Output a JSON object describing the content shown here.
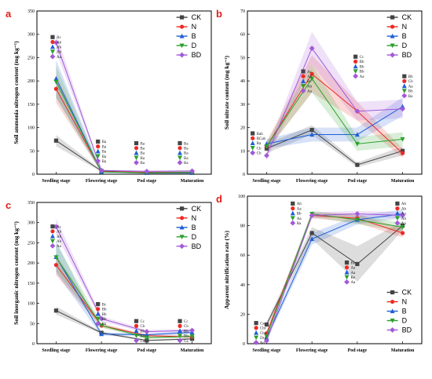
{
  "colors": {
    "CK": "#444444",
    "N": "#ee2a24",
    "B": "#1f5fd6",
    "D": "#2ca02c",
    "BD": "#a259d9"
  },
  "chart_data": [
    {
      "id": "a",
      "type": "line",
      "panel_label": "a",
      "ylabel": "Soil ammonia nitrogen content (mg kg⁻¹)",
      "ylim": [
        0,
        350
      ],
      "yticks": [
        0,
        50,
        100,
        150,
        200,
        250,
        300,
        350
      ],
      "categories": [
        "Seedling stage",
        "Flowering stage",
        "Pod stage",
        "Maturation"
      ],
      "series": [
        {
          "name": "CK",
          "values": [
            72,
            7,
            3,
            3
          ],
          "ci": [
            12,
            2,
            2,
            2
          ]
        },
        {
          "name": "N",
          "values": [
            183,
            6,
            4,
            4
          ],
          "ci": [
            30,
            2,
            2,
            2
          ]
        },
        {
          "name": "B",
          "values": [
            205,
            5,
            3,
            3
          ],
          "ci": [
            40,
            2,
            2,
            2
          ]
        },
        {
          "name": "D",
          "values": [
            198,
            5,
            3,
            4
          ],
          "ci": [
            35,
            2,
            2,
            2
          ]
        },
        {
          "name": "BD",
          "values": [
            282,
            8,
            6,
            7
          ],
          "ci": [
            20,
            2,
            2,
            2
          ]
        }
      ],
      "letters": [
        [
          "Ac",
          "Ab",
          "Ab",
          "Ab",
          "Aa"
        ],
        [
          "Ba",
          "Ba",
          "Ba",
          "Ba",
          "Ba"
        ],
        [
          "Ba",
          "Ba",
          "Ba",
          "Ba",
          "Ba"
        ],
        [
          "Ba",
          "Ba",
          "Ba",
          "Ba",
          "Ba"
        ]
      ]
    },
    {
      "id": "b",
      "type": "line",
      "panel_label": "b",
      "ylabel": "Soil nitrate content (mg kg⁻¹)",
      "ylim": [
        0,
        70
      ],
      "yticks": [
        0,
        10,
        20,
        30,
        40,
        50,
        60,
        70
      ],
      "categories": [
        "Seedling stage",
        "Flowering stage",
        "Pod stage",
        "Maturation"
      ],
      "series": [
        {
          "name": "CK",
          "values": [
            11,
            19,
            4,
            10
          ],
          "ci": [
            2,
            2,
            1,
            2
          ]
        },
        {
          "name": "N",
          "values": [
            12,
            43,
            27,
            9
          ],
          "ci": [
            2,
            8,
            4,
            2
          ]
        },
        {
          "name": "B",
          "values": [
            13,
            17,
            17,
            29
          ],
          "ci": [
            2,
            3,
            3,
            4
          ]
        },
        {
          "name": "D",
          "values": [
            12,
            41,
            13,
            15
          ],
          "ci": [
            2,
            6,
            3,
            3
          ]
        },
        {
          "name": "BD",
          "values": [
            8,
            54,
            27,
            28
          ],
          "ci": [
            2,
            7,
            4,
            4
          ]
        }
      ],
      "letters": [
        [
          "Bab",
          "BCab",
          "Ba",
          "Cb",
          "Cb"
        ],
        [
          "Ac",
          "Ab",
          "Bc",
          "Ab",
          "Aa"
        ],
        [
          "Cc",
          "Bb",
          "Bb",
          "Bb",
          "Aa"
        ],
        [
          "Bb",
          "Cb",
          "Aa",
          "Bb",
          "Ba"
        ]
      ]
    },
    {
      "id": "c",
      "type": "line",
      "panel_label": "c",
      "ylabel": "Soil inorganic nitrogen content (mg kg⁻¹)",
      "ylim": [
        0,
        350
      ],
      "yticks": [
        0,
        50,
        100,
        150,
        200,
        250,
        300,
        350
      ],
      "categories": [
        "Seedling stage",
        "Flowering stage",
        "Pod stage",
        "Maturation"
      ],
      "series": [
        {
          "name": "CK",
          "values": [
            82,
            27,
            8,
            12
          ],
          "ci": [
            10,
            3,
            2,
            2
          ]
        },
        {
          "name": "N",
          "values": [
            195,
            45,
            20,
            17
          ],
          "ci": [
            25,
            5,
            3,
            3
          ]
        },
        {
          "name": "B",
          "values": [
            215,
            24,
            22,
            28
          ],
          "ci": [
            40,
            4,
            3,
            4
          ]
        },
        {
          "name": "D",
          "values": [
            214,
            45,
            15,
            18
          ],
          "ci": [
            35,
            5,
            3,
            3
          ]
        },
        {
          "name": "BD",
          "values": [
            290,
            62,
            30,
            33
          ],
          "ci": [
            20,
            6,
            4,
            4
          ]
        }
      ],
      "letters": [
        [
          "Ac",
          "Ab",
          "Ab",
          "Ab",
          "Aa"
        ],
        [
          "Bc",
          "Bb",
          "Bb",
          "Bb",
          "Ba"
        ],
        [
          "Cc",
          "Cb",
          "Bb",
          "Bb",
          "Ca"
        ],
        [
          "Cc",
          "Cb",
          "Bb",
          "Bb",
          "Ca"
        ]
      ]
    },
    {
      "id": "d",
      "type": "line",
      "panel_label": "d",
      "ylabel": "Apparent nitrification rate (%)",
      "ylim": [
        0,
        100
      ],
      "yticks": [
        0,
        20,
        40,
        60,
        80,
        100
      ],
      "categories": [
        "Seedling stage",
        "Flowering stage",
        "Pod stage",
        "Maturation"
      ],
      "series": [
        {
          "name": "CK",
          "values": [
            13,
            75,
            54,
            80
          ],
          "ci": [
            2,
            4,
            12,
            3
          ]
        },
        {
          "name": "N",
          "values": [
            7,
            87,
            85,
            75
          ],
          "ci": [
            2,
            2,
            3,
            3
          ]
        },
        {
          "name": "B",
          "values": [
            4,
            71,
            84,
            88
          ],
          "ci": [
            2,
            4,
            3,
            3
          ]
        },
        {
          "name": "D",
          "values": [
            5,
            88,
            84,
            79
          ],
          "ci": [
            2,
            2,
            3,
            3
          ]
        },
        {
          "name": "BD",
          "values": [
            2,
            87,
            88,
            87
          ],
          "ci": [
            2,
            2,
            2,
            2
          ]
        }
      ],
      "letters": [
        [
          "Ca",
          "Cbc",
          "Cbc",
          "Dcd",
          "Bd"
        ],
        [
          "Ab",
          "Aa",
          "Bb",
          "Aa",
          "Ba"
        ],
        [
          "Bb",
          "Aa",
          "Aa",
          "Be",
          "Aa"
        ],
        [
          "Ab",
          "Ab",
          "Aa",
          "Ab",
          "Aa"
        ]
      ]
    }
  ]
}
